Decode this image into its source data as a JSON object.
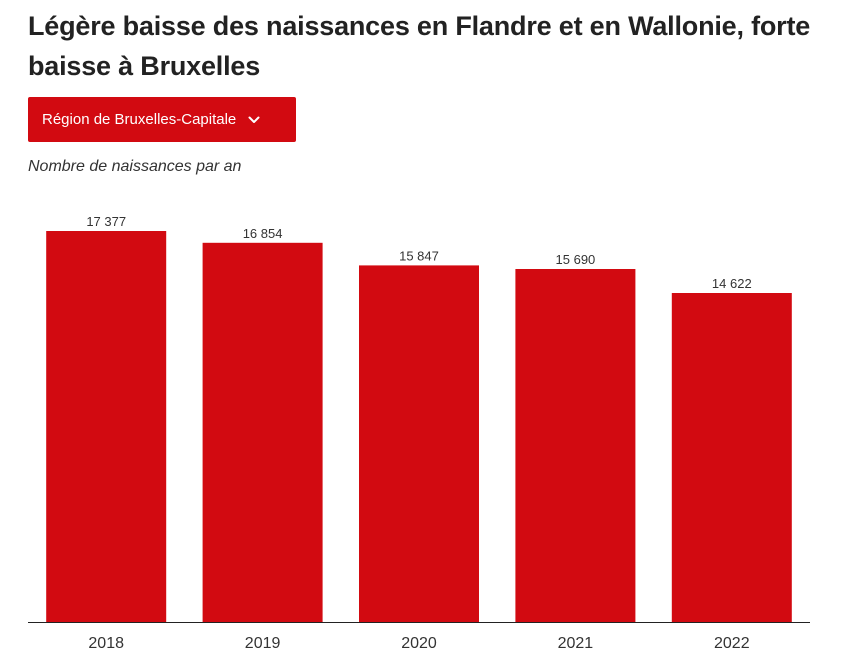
{
  "header": {
    "title": "Légère baisse des naissances en Flandre et en Wallonie, forte baisse à Bruxelles"
  },
  "region_select": {
    "selected": "Région de Bruxelles-Capitale",
    "icon": "chevron-down-icon"
  },
  "colors": {
    "bar": "#d20a11",
    "button": "#d20a11",
    "text": "#222222"
  },
  "chart_data": {
    "type": "bar",
    "title": "Légère baisse des naissances en Flandre et en Wallonie, forte baisse à Bruxelles",
    "subtitle": "Nombre de naissances par an",
    "categories": [
      "2018",
      "2019",
      "2020",
      "2021",
      "2022"
    ],
    "values": [
      17377,
      16854,
      15847,
      15690,
      14622
    ],
    "value_labels": [
      "17 377",
      "16 854",
      "15 847",
      "15 690",
      "14 622"
    ],
    "xlabel": "",
    "ylabel": "",
    "ylim": [
      0,
      17377
    ],
    "grid": false,
    "legend": "none"
  }
}
